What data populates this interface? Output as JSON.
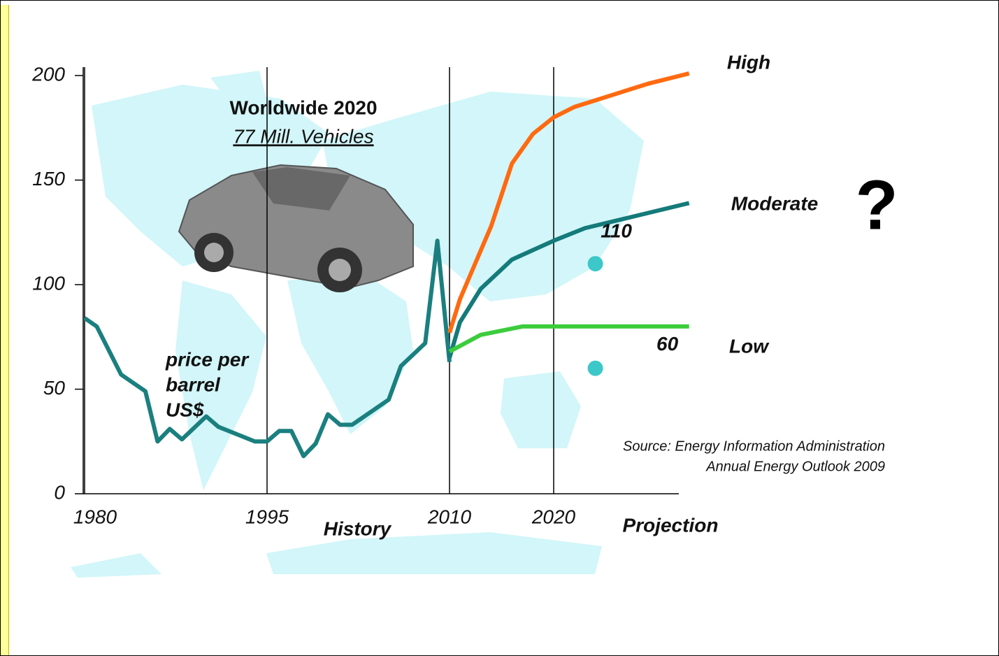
{
  "chart_data": [
    {
      "type": "line",
      "title": "Worldwide 2020",
      "subtitle": "77 Mill. Vehicles",
      "ylabel": [
        "price per",
        "barrel",
        "US$"
      ],
      "xlabel": "History",
      "x": [
        1980,
        1981,
        1983,
        1985,
        1986,
        1987,
        1988,
        1990,
        1991,
        1994,
        1995,
        1996,
        1997,
        1998,
        1999,
        2000,
        2001,
        2002,
        2005,
        2006,
        2008,
        2009,
        2010
      ],
      "values": [
        84,
        80,
        57,
        49,
        25,
        31,
        26,
        37,
        32,
        25,
        25,
        30,
        30,
        18,
        24,
        38,
        33,
        33,
        45,
        61,
        72,
        121,
        63
      ],
      "color": "#1b7f7f",
      "xlim": [
        1980,
        2010
      ],
      "xticks": [
        1980,
        1995,
        2010
      ],
      "ylim": [
        0,
        200
      ],
      "yticks": [
        0,
        50,
        100,
        150,
        200
      ],
      "grid": "x"
    },
    {
      "type": "line",
      "xlabel": "Projection",
      "series": [
        {
          "name": "High",
          "color": "#ff6a10",
          "x": [
            2010,
            2011,
            2014,
            2016,
            2018,
            2020,
            2022,
            2029,
            2033
          ],
          "values": [
            77,
            93,
            128,
            158,
            172,
            180,
            185,
            196,
            201
          ]
        },
        {
          "name": "Moderate",
          "color": "#157a7a",
          "x": [
            2010,
            2011,
            2013,
            2016,
            2020,
            2023,
            2033
          ],
          "values": [
            65,
            82,
            98,
            112,
            121,
            127,
            139
          ]
        },
        {
          "name": "Low",
          "color": "#3ccc3c",
          "x": [
            2010,
            2013,
            2017,
            2033
          ],
          "values": [
            68,
            76,
            80,
            80
          ]
        }
      ],
      "points": {
        "color": "#3cc8c8",
        "x": [
          2024,
          2024
        ],
        "values": [
          110,
          60
        ]
      },
      "annotation": "?",
      "source": [
        "Source: Energy Information Administration",
        "Annual Energy Outlook 2009"
      ],
      "xlim": [
        2010,
        2030
      ],
      "xticks": [
        2020
      ],
      "ylim": [
        0,
        200
      ],
      "grid": "x"
    }
  ]
}
